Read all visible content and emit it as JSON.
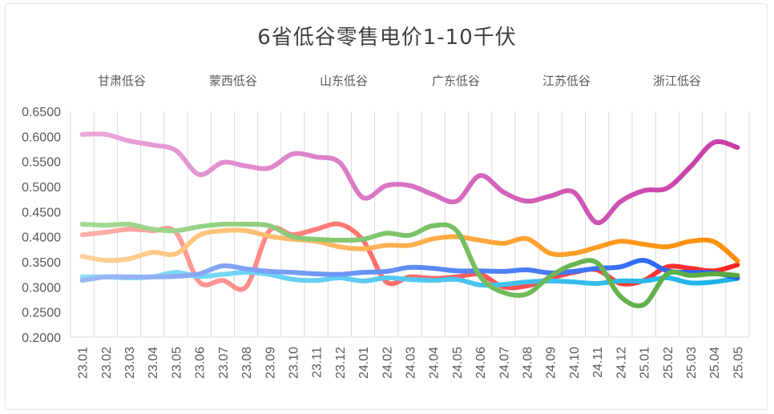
{
  "chart_data": {
    "type": "line",
    "title": "6省低谷零售电价1-10千伏",
    "xlabel": "",
    "ylabel": "",
    "ylim": [
      0.2,
      0.65
    ],
    "yticks": [
      "0.2000",
      "0.2500",
      "0.3000",
      "0.3500",
      "0.4000",
      "0.4500",
      "0.5000",
      "0.5500",
      "0.6000",
      "0.6500"
    ],
    "grid": "vertical",
    "legend_position": "top",
    "categories": [
      "23.01",
      "23.02",
      "23.03",
      "23.04",
      "23.05",
      "23.06",
      "23.07",
      "23.08",
      "23.09",
      "23.10",
      "23.11",
      "23.12",
      "24.01",
      "24.02",
      "24.03",
      "24.04",
      "24.05",
      "24.06",
      "24.07",
      "24.08",
      "24.09",
      "24.10",
      "24.11",
      "24.12",
      "25.01",
      "25.02",
      "25.03",
      "25.04",
      "25.05"
    ],
    "series": [
      {
        "name": "甘肃低谷",
        "color_start": "#e8aadb",
        "color_end": "#c83aa8",
        "values": [
          0.604,
          0.604,
          0.591,
          0.583,
          0.572,
          0.524,
          0.548,
          0.541,
          0.537,
          0.565,
          0.559,
          0.548,
          0.478,
          0.502,
          0.502,
          0.484,
          0.471,
          0.522,
          0.489,
          0.471,
          0.481,
          0.489,
          0.428,
          0.47,
          0.492,
          0.497,
          0.54,
          0.588,
          0.578
        ]
      },
      {
        "name": "蒙西低谷",
        "color_start": "#ffb3ae",
        "color_end": "#ff2020",
        "values": [
          0.404,
          0.409,
          0.415,
          0.412,
          0.409,
          0.31,
          0.313,
          0.3,
          0.412,
          0.404,
          0.415,
          0.425,
          0.393,
          0.31,
          0.32,
          0.317,
          0.32,
          0.325,
          0.3,
          0.302,
          0.317,
          0.329,
          0.334,
          0.307,
          0.313,
          0.34,
          0.337,
          0.332,
          0.344
        ]
      },
      {
        "name": "山东低谷",
        "color_start": "#ffd29b",
        "color_end": "#ff8c00",
        "values": [
          0.361,
          0.353,
          0.356,
          0.369,
          0.366,
          0.403,
          0.412,
          0.412,
          0.401,
          0.395,
          0.391,
          0.38,
          0.376,
          0.383,
          0.383,
          0.396,
          0.4,
          0.393,
          0.387,
          0.396,
          0.367,
          0.367,
          0.379,
          0.391,
          0.385,
          0.38,
          0.391,
          0.39,
          0.352
        ]
      },
      {
        "name": "广东低谷",
        "color_start": "#8ee0f8",
        "color_end": "#18b0e8",
        "values": [
          0.32,
          0.32,
          0.318,
          0.32,
          0.329,
          0.321,
          0.325,
          0.329,
          0.325,
          0.315,
          0.313,
          0.318,
          0.312,
          0.318,
          0.315,
          0.313,
          0.315,
          0.304,
          0.305,
          0.31,
          0.312,
          0.31,
          0.307,
          0.312,
          0.312,
          0.318,
          0.308,
          0.31,
          0.317
        ]
      },
      {
        "name": "江苏低谷",
        "color_start": "#a0baf5",
        "color_end": "#1e5ef5",
        "values": [
          0.313,
          0.32,
          0.32,
          0.32,
          0.321,
          0.326,
          0.342,
          0.336,
          0.331,
          0.329,
          0.326,
          0.325,
          0.329,
          0.331,
          0.339,
          0.337,
          0.332,
          0.332,
          0.331,
          0.334,
          0.328,
          0.331,
          0.337,
          0.34,
          0.353,
          0.332,
          0.329,
          0.328,
          0.318
        ]
      },
      {
        "name": "浙江低谷",
        "color_start": "#a5dc95",
        "color_end": "#56a83c",
        "values": [
          0.425,
          0.423,
          0.425,
          0.415,
          0.412,
          0.42,
          0.425,
          0.425,
          0.422,
          0.4,
          0.395,
          0.393,
          0.395,
          0.407,
          0.403,
          0.422,
          0.412,
          0.321,
          0.289,
          0.286,
          0.321,
          0.345,
          0.348,
          0.281,
          0.265,
          0.326,
          0.323,
          0.326,
          0.323
        ]
      }
    ]
  }
}
